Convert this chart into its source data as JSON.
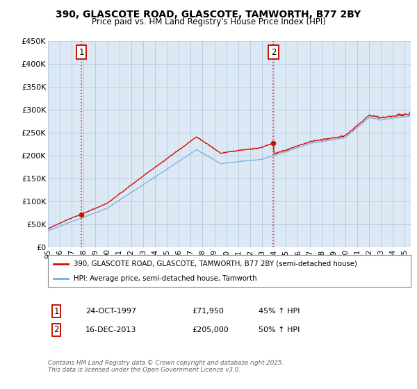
{
  "title_line1": "390, GLASCOTE ROAD, GLASCOTE, TAMWORTH, B77 2BY",
  "title_line2": "Price paid vs. HM Land Registry's House Price Index (HPI)",
  "background_color": "#ffffff",
  "plot_bg_color": "#dce9f5",
  "grid_color": "#b0c8e0",
  "hpi_line_color": "#7aabe0",
  "price_line_color": "#cc1100",
  "marker_color": "#cc1100",
  "annotation_box_color": "#cc1100",
  "dashed_line_color": "#cc1100",
  "purchase1_date_x": 1997.81,
  "purchase1_price": 71950,
  "purchase2_date_x": 2013.96,
  "purchase2_price": 205000,
  "xmin": 1995.0,
  "xmax": 2025.5,
  "ymin": 0,
  "ymax": 450000,
  "yticks": [
    0,
    50000,
    100000,
    150000,
    200000,
    250000,
    300000,
    350000,
    400000,
    450000
  ],
  "ytick_labels": [
    "£0",
    "£50K",
    "£100K",
    "£150K",
    "£200K",
    "£250K",
    "£300K",
    "£350K",
    "£400K",
    "£450K"
  ],
  "xtick_years": [
    1995,
    1996,
    1997,
    1998,
    1999,
    2000,
    2001,
    2002,
    2003,
    2004,
    2005,
    2006,
    2007,
    2008,
    2009,
    2010,
    2011,
    2012,
    2013,
    2014,
    2015,
    2016,
    2017,
    2018,
    2019,
    2020,
    2021,
    2022,
    2023,
    2024,
    2025
  ],
  "legend_label1": "390, GLASCOTE ROAD, GLASCOTE, TAMWORTH, B77 2BY (semi-detached house)",
  "legend_label2": "HPI: Average price, semi-detached house, Tamworth",
  "table_row1": [
    "1",
    "24-OCT-1997",
    "£71,950",
    "45% ↑ HPI"
  ],
  "table_row2": [
    "2",
    "16-DEC-2013",
    "£205,000",
    "50% ↑ HPI"
  ],
  "footnote": "Contains HM Land Registry data © Crown copyright and database right 2025.\nThis data is licensed under the Open Government Licence v3.0."
}
